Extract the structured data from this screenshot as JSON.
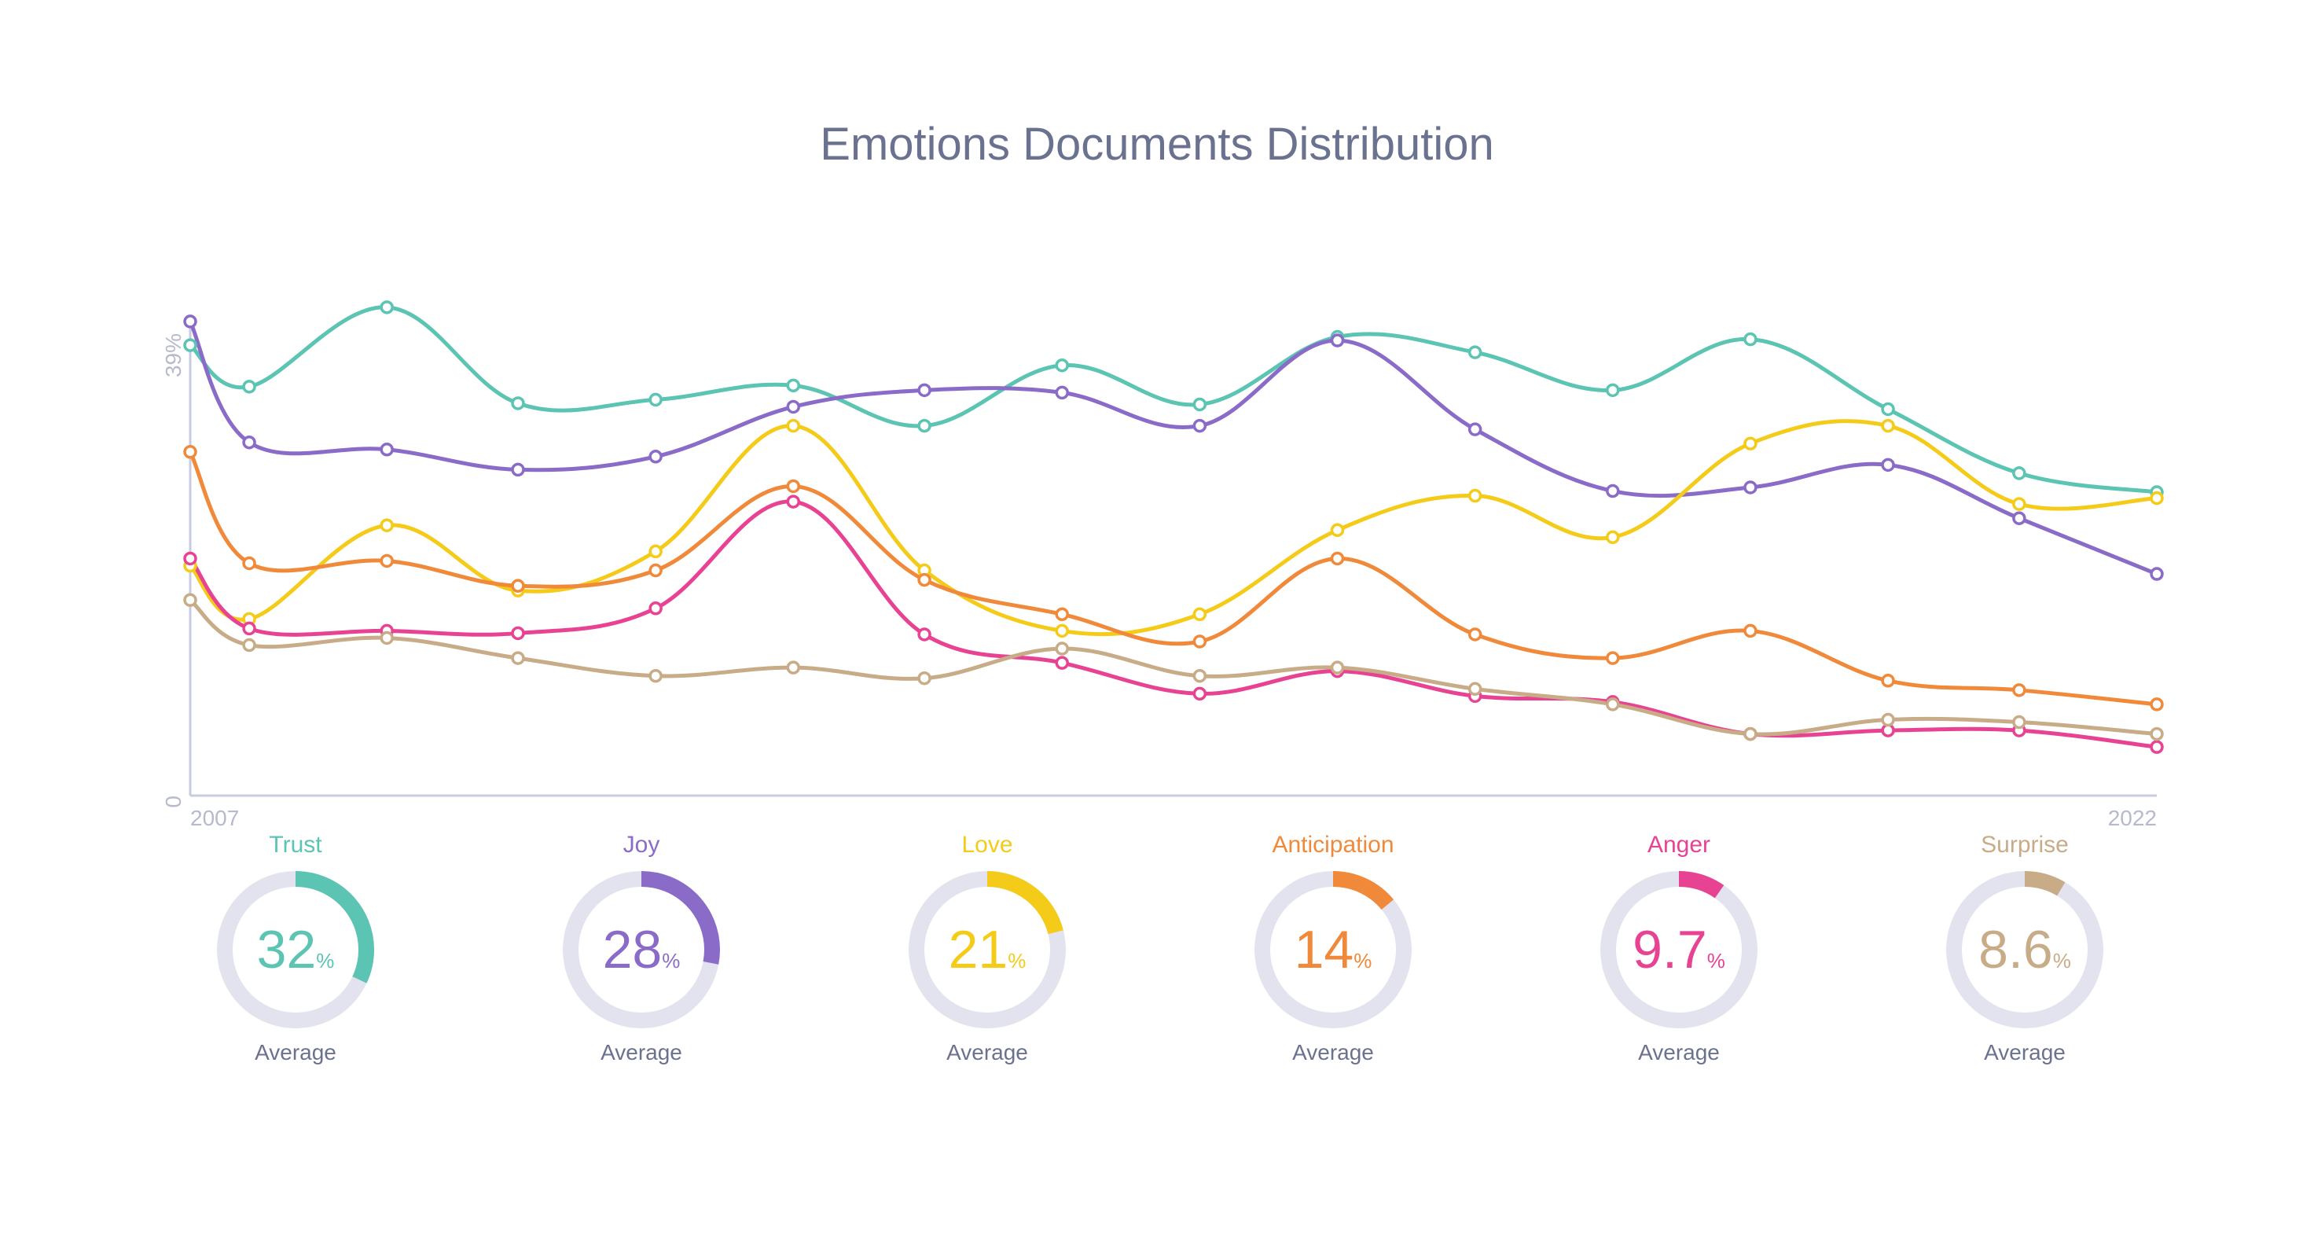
{
  "title": "Emotions Documents Distribution",
  "chart_data": {
    "type": "line",
    "title": "Emotions Documents Distribution",
    "xlabel": "",
    "ylabel": "",
    "x_tick_labels": [
      "2007",
      "2022"
    ],
    "y_tick_labels": [
      "0",
      "39%"
    ],
    "xlim": [
      2007,
      2022
    ],
    "ylim": [
      0,
      39
    ],
    "grid": false,
    "x": [
      2007,
      2007.45,
      2008.5,
      2009.5,
      2010.55,
      2011.6,
      2012.6,
      2013.65,
      2014.7,
      2015.75,
      2016.8,
      2017.85,
      2018.9,
      2019.95,
      2020.95,
      2022
    ],
    "series": [
      {
        "name": "Trust",
        "color": "#5cc4b2",
        "values": [
          38.0,
          34.5,
          41.2,
          33.1,
          33.4,
          34.6,
          31.2,
          36.3,
          33.0,
          38.7,
          37.4,
          34.2,
          38.5,
          32.6,
          27.2,
          25.6
        ]
      },
      {
        "name": "Joy",
        "color": "#8a6bc8",
        "values": [
          40.0,
          29.8,
          29.2,
          27.5,
          28.6,
          32.8,
          34.2,
          34.0,
          31.2,
          38.4,
          30.9,
          25.7,
          26.0,
          27.9,
          23.4,
          18.7
        ]
      },
      {
        "name": "Love",
        "color": "#f5cb1a",
        "values": [
          19.4,
          14.9,
          22.8,
          17.3,
          20.6,
          31.2,
          19.0,
          13.9,
          15.3,
          22.4,
          25.3,
          21.8,
          29.7,
          31.2,
          24.6,
          25.1
        ]
      },
      {
        "name": "Anticipation",
        "color": "#f08a3a",
        "values": [
          29.0,
          19.6,
          19.8,
          17.7,
          19.0,
          26.1,
          18.2,
          15.3,
          13.0,
          20.0,
          13.6,
          11.6,
          13.9,
          9.7,
          8.9,
          7.7
        ]
      },
      {
        "name": "Anger",
        "color": "#e84393",
        "values": [
          20.0,
          14.1,
          13.9,
          13.7,
          15.8,
          24.8,
          13.6,
          11.2,
          8.6,
          10.5,
          8.4,
          7.9,
          5.2,
          5.5,
          5.5,
          4.1
        ]
      },
      {
        "name": "Surprise",
        "color": "#c8ac88",
        "values": [
          16.5,
          12.7,
          13.3,
          11.6,
          10.1,
          10.8,
          9.9,
          12.4,
          10.1,
          10.8,
          9.0,
          7.7,
          5.2,
          6.4,
          6.2,
          5.2
        ]
      }
    ]
  },
  "averages": [
    {
      "label": "Trust",
      "value": "32",
      "unit": "%",
      "caption": "Average",
      "fraction": 0.32,
      "color": "#5cc4b2"
    },
    {
      "label": "Joy",
      "value": "28",
      "unit": "%",
      "caption": "Average",
      "fraction": 0.28,
      "color": "#8a6bc8"
    },
    {
      "label": "Love",
      "value": "21",
      "unit": "%",
      "caption": "Average",
      "fraction": 0.21,
      "color": "#f5cb1a"
    },
    {
      "label": "Anticipation",
      "value": "14",
      "unit": "%",
      "caption": "Average",
      "fraction": 0.14,
      "color": "#f08a3a"
    },
    {
      "label": "Anger",
      "value": "9.7",
      "unit": "%",
      "caption": "Average",
      "fraction": 0.097,
      "color": "#e84393"
    },
    {
      "label": "Surprise",
      "value": "8.6",
      "unit": "%",
      "caption": "Average",
      "fraction": 0.086,
      "color": "#c8ac88"
    }
  ],
  "colors": {
    "axis": "#c9cbe0",
    "ring_track": "#e3e3ef",
    "text": "#6b7290",
    "tick": "#b7bacd"
  }
}
